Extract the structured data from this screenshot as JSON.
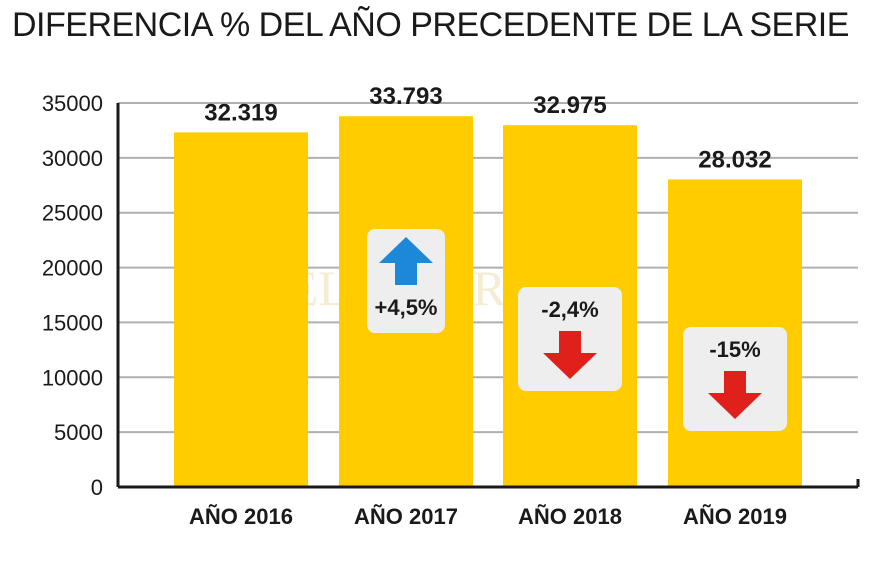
{
  "chart_data": {
    "type": "bar",
    "title": "DIFERENCIA % DEL AÑO PRECEDENTE DE LA SERIE",
    "categories": [
      "AÑO 2016",
      "AÑO 2017",
      "AÑO 2018",
      "AÑO 2019"
    ],
    "values": [
      32319,
      33793,
      32975,
      28032
    ],
    "value_labels": [
      "32.319",
      "33.793",
      "32.975",
      "28.032"
    ],
    "ylim": [
      0,
      35000
    ],
    "yticks": [
      0,
      5000,
      10000,
      15000,
      20000,
      25000,
      30000,
      35000
    ],
    "ytick_labels": [
      "0",
      "5000",
      "10000",
      "15000",
      "20000",
      "25000",
      "30000",
      "35000"
    ],
    "grid": true,
    "bar_color": "#FFCC00",
    "annotations": [
      {
        "category": "AÑO 2017",
        "text": "+4,5%",
        "direction": "up",
        "color": "#1E88D8"
      },
      {
        "category": "AÑO 2018",
        "text": "-2,4%",
        "direction": "down",
        "color": "#E0201B"
      },
      {
        "category": "AÑO 2019",
        "text": "-15%",
        "direction": "down",
        "color": "#E0201B"
      }
    ],
    "watermark": "EL LITORAL"
  }
}
